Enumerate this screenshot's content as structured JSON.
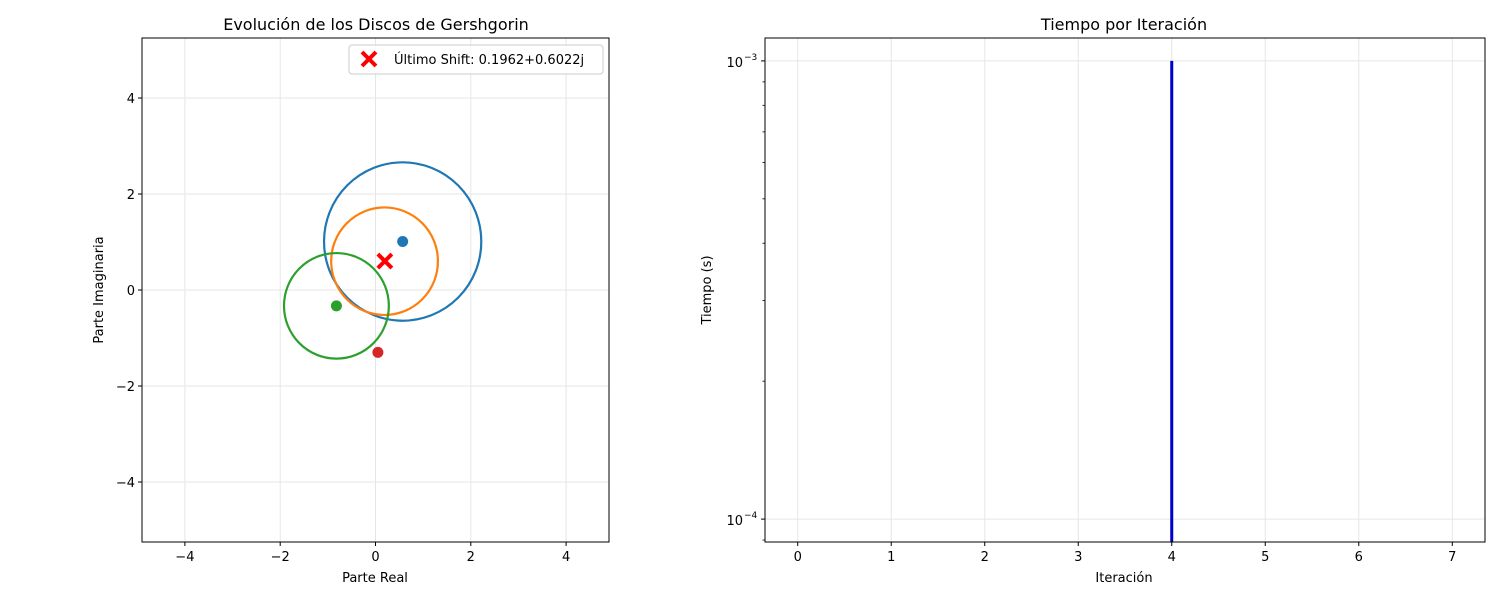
{
  "chart_data": [
    {
      "type": "scatter",
      "title": "Evolución de los Discos de Gershgorin",
      "xlabel": "Parte Real",
      "ylabel": "Parte Imaginaria",
      "xlim": [
        -4.9,
        4.9
      ],
      "ylim": [
        -5.25,
        5.25
      ],
      "xticks": [
        -4,
        -2,
        0,
        2,
        4
      ],
      "yticks": [
        -4,
        -2,
        0,
        2,
        4
      ],
      "xtick_labels": [
        "−4",
        "−2",
        "0",
        "2",
        "4"
      ],
      "ytick_labels": [
        "−4",
        "−2",
        "0",
        "2",
        "4"
      ],
      "grid": true,
      "legend_position": "top-right",
      "discs": [
        {
          "center": [
            0.57,
            1.01
          ],
          "radius": 1.65,
          "color": "#1f77b4"
        },
        {
          "center": [
            0.19,
            0.6
          ],
          "radius": 1.12,
          "color": "#ff7f0e"
        },
        {
          "center": [
            -0.82,
            -0.33
          ],
          "radius": 1.1,
          "color": "#2ca02c"
        }
      ],
      "points": [
        {
          "x": 0.57,
          "y": 1.01,
          "color": "#1f77b4"
        },
        {
          "x": -0.82,
          "y": -0.33,
          "color": "#2ca02c"
        },
        {
          "x": 0.05,
          "y": -1.3,
          "color": "#d62728"
        }
      ],
      "shift": {
        "x": 0.1962,
        "y": 0.6022,
        "color": "#ff0000",
        "label": "Último Shift: 0.1962+0.6022j"
      }
    },
    {
      "type": "line",
      "title": "Tiempo por Iteración",
      "xlabel": "Iteración",
      "ylabel": "Tiempo (s)",
      "xlim": [
        -0.35,
        7.35
      ],
      "ylim_log10": [
        -4.05,
        -2.95
      ],
      "yscale": "log",
      "xticks": [
        0,
        1,
        2,
        3,
        4,
        5,
        6,
        7
      ],
      "xtick_labels": [
        "0",
        "1",
        "2",
        "3",
        "4",
        "5",
        "6",
        "7"
      ],
      "yticks": [
        {
          "exp": -4,
          "label": "10",
          "sup": "−4"
        },
        {
          "exp": -3,
          "label": "10",
          "sup": "−3"
        }
      ],
      "grid": true,
      "series": [
        {
          "x": [
            4,
            4
          ],
          "y": [
            8.91e-05,
            0.001
          ],
          "color": "#0000cc"
        }
      ]
    }
  ]
}
